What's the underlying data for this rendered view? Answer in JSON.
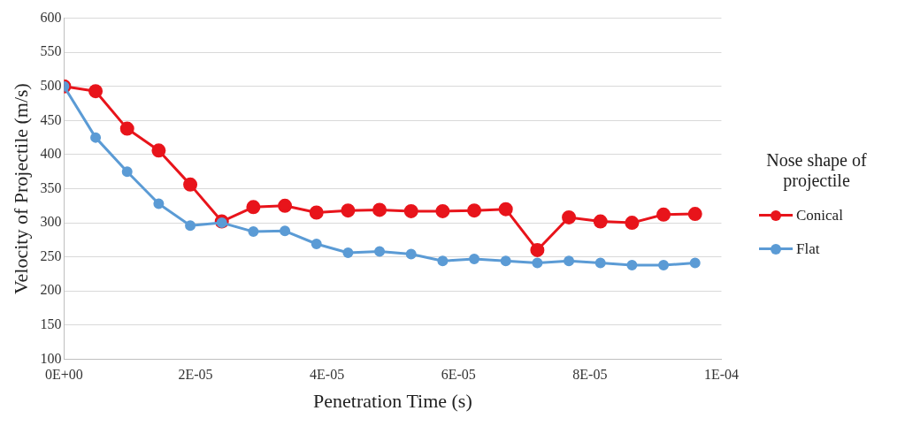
{
  "chart_data": {
    "type": "line",
    "xlabel": "Penetration Time (s)",
    "ylabel": "Velocity of Projectile (m/s)",
    "legend_title": "Nose shape of projectile",
    "x": [
      0,
      4.8e-06,
      9.6e-06,
      1.44e-05,
      1.92e-05,
      2.4e-05,
      2.88e-05,
      3.36e-05,
      3.84e-05,
      4.32e-05,
      4.8e-05,
      5.28e-05,
      5.76e-05,
      6.24e-05,
      6.72e-05,
      7.2e-05,
      7.68e-05,
      8.16e-05,
      8.64e-05,
      9.12e-05,
      9.6e-05
    ],
    "series": [
      {
        "name": "Conical",
        "color": "#e8141b",
        "values": [
          500,
          493,
          438,
          406,
          356,
          302,
          323,
          325,
          315,
          318,
          319,
          317,
          317,
          318,
          320,
          260,
          308,
          302,
          300,
          312,
          313
        ]
      },
      {
        "name": "Flat",
        "color": "#5b9bd5",
        "values": [
          500,
          425,
          375,
          328,
          296,
          300,
          287,
          288,
          269,
          256,
          258,
          254,
          244,
          247,
          244,
          241,
          244,
          241,
          238,
          238,
          241
        ]
      }
    ],
    "xlim": [
      0,
      0.0001
    ],
    "xticks": [
      {
        "value": 0,
        "label": "0E+00"
      },
      {
        "value": 2e-05,
        "label": "2E-05"
      },
      {
        "value": 4e-05,
        "label": "4E-05"
      },
      {
        "value": 6e-05,
        "label": "6E-05"
      },
      {
        "value": 8e-05,
        "label": "8E-05"
      },
      {
        "value": 0.0001,
        "label": "1E-04"
      }
    ],
    "ylim": [
      100,
      600
    ],
    "yticks": [
      100,
      150,
      200,
      250,
      300,
      350,
      400,
      450,
      500,
      550,
      600
    ],
    "grid": "y",
    "legend": "right",
    "marker": "circle",
    "line_style": "solid"
  }
}
